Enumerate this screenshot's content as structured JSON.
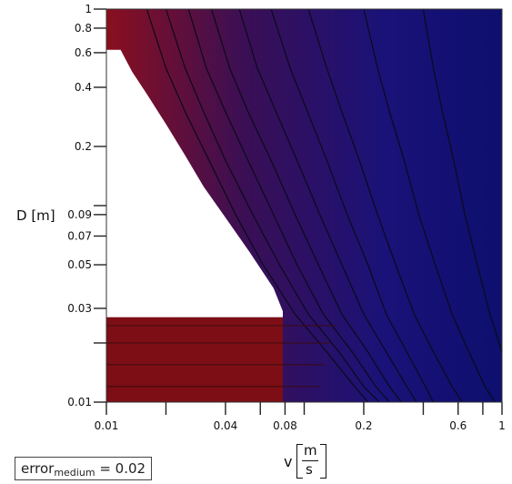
{
  "chart_data": {
    "type": "heatmap",
    "title": "",
    "xlabel": {
      "var": "v",
      "unit_num": "m",
      "unit_den": "s"
    },
    "ylabel": "D [m]",
    "x_scale": "log",
    "y_scale": "log",
    "xlim": [
      0.01,
      1
    ],
    "ylim": [
      0.01,
      1
    ],
    "x_ticks": [
      {
        "value": 0.01,
        "label": "0.01"
      },
      {
        "value": 0.02,
        "label": ""
      },
      {
        "value": 0.04,
        "label": "0.04"
      },
      {
        "value": 0.06,
        "label": ""
      },
      {
        "value": 0.08,
        "label": "0.08"
      },
      {
        "value": 0.1,
        "label": ""
      },
      {
        "value": 0.2,
        "label": "0.2"
      },
      {
        "value": 0.4,
        "label": ""
      },
      {
        "value": 0.6,
        "label": "0.6"
      },
      {
        "value": 0.8,
        "label": ""
      },
      {
        "value": 1,
        "label": "1"
      }
    ],
    "y_ticks": [
      {
        "value": 0.01,
        "label": "0.01"
      },
      {
        "value": 0.02,
        "label": ""
      },
      {
        "value": 0.03,
        "label": "0.03"
      },
      {
        "value": 0.05,
        "label": "0.05"
      },
      {
        "value": 0.07,
        "label": "0.07"
      },
      {
        "value": 0.09,
        "label": "0.09"
      },
      {
        "value": 0.1,
        "label": ""
      },
      {
        "value": 0.2,
        "label": "0.2"
      },
      {
        "value": 0.4,
        "label": "0.4"
      },
      {
        "value": 0.6,
        "label": "0.6"
      },
      {
        "value": 0.8,
        "label": "0.8"
      },
      {
        "value": 1,
        "label": "1"
      }
    ],
    "colormap": {
      "low": "#0d0f6e",
      "high": "#8a0f1e"
    },
    "blank_region": {
      "color": "#ffffff",
      "boundary": [
        {
          "v": 0.0118,
          "D": 0.62
        },
        {
          "v": 0.0135,
          "D": 0.48
        },
        {
          "v": 0.016,
          "D": 0.37
        },
        {
          "v": 0.02,
          "D": 0.26
        },
        {
          "v": 0.025,
          "D": 0.18
        },
        {
          "v": 0.031,
          "D": 0.125
        },
        {
          "v": 0.04,
          "D": 0.087
        },
        {
          "v": 0.053,
          "D": 0.058
        },
        {
          "v": 0.07,
          "D": 0.038
        },
        {
          "v": 0.078,
          "D": 0.029
        }
      ]
    },
    "low_D_band": {
      "D_max": 0.027,
      "color": "#7d0e15"
    },
    "contours": [
      {
        "pts": [
          {
            "v": 0.016,
            "D": 1
          },
          {
            "v": 0.02,
            "D": 0.5
          },
          {
            "v": 0.025,
            "D": 0.3
          },
          {
            "v": 0.033,
            "D": 0.17
          },
          {
            "v": 0.045,
            "D": 0.09
          },
          {
            "v": 0.062,
            "D": 0.05
          },
          {
            "v": 0.09,
            "D": 0.028
          },
          {
            "v": 0.13,
            "D": 0.018
          },
          {
            "v": 0.18,
            "D": 0.012
          },
          {
            "v": 0.21,
            "D": 0.01
          }
        ]
      },
      {
        "pts": [
          {
            "v": 0.02,
            "D": 1
          },
          {
            "v": 0.025,
            "D": 0.5
          },
          {
            "v": 0.031,
            "D": 0.3
          },
          {
            "v": 0.04,
            "D": 0.17
          },
          {
            "v": 0.055,
            "D": 0.09
          },
          {
            "v": 0.075,
            "D": 0.05
          },
          {
            "v": 0.105,
            "D": 0.028
          },
          {
            "v": 0.15,
            "D": 0.018
          },
          {
            "v": 0.2,
            "D": 0.012
          },
          {
            "v": 0.24,
            "D": 0.01
          }
        ]
      },
      {
        "pts": [
          {
            "v": 0.026,
            "D": 1
          },
          {
            "v": 0.032,
            "D": 0.5
          },
          {
            "v": 0.04,
            "D": 0.3
          },
          {
            "v": 0.052,
            "D": 0.17
          },
          {
            "v": 0.07,
            "D": 0.09
          },
          {
            "v": 0.092,
            "D": 0.05
          },
          {
            "v": 0.125,
            "D": 0.028
          },
          {
            "v": 0.175,
            "D": 0.018
          },
          {
            "v": 0.23,
            "D": 0.012
          },
          {
            "v": 0.27,
            "D": 0.01
          }
        ]
      },
      {
        "pts": [
          {
            "v": 0.034,
            "D": 1
          },
          {
            "v": 0.042,
            "D": 0.5
          },
          {
            "v": 0.052,
            "D": 0.3
          },
          {
            "v": 0.068,
            "D": 0.17
          },
          {
            "v": 0.09,
            "D": 0.09
          },
          {
            "v": 0.118,
            "D": 0.05
          },
          {
            "v": 0.155,
            "D": 0.028
          },
          {
            "v": 0.21,
            "D": 0.018
          },
          {
            "v": 0.27,
            "D": 0.012
          },
          {
            "v": 0.31,
            "D": 0.01
          }
        ]
      },
      {
        "pts": [
          {
            "v": 0.047,
            "D": 1
          },
          {
            "v": 0.058,
            "D": 0.5
          },
          {
            "v": 0.072,
            "D": 0.3
          },
          {
            "v": 0.092,
            "D": 0.17
          },
          {
            "v": 0.12,
            "D": 0.09
          },
          {
            "v": 0.155,
            "D": 0.05
          },
          {
            "v": 0.2,
            "D": 0.028
          },
          {
            "v": 0.26,
            "D": 0.018
          },
          {
            "v": 0.33,
            "D": 0.012
          },
          {
            "v": 0.37,
            "D": 0.01
          }
        ]
      },
      {
        "pts": [
          {
            "v": 0.068,
            "D": 1
          },
          {
            "v": 0.085,
            "D": 0.5
          },
          {
            "v": 0.104,
            "D": 0.3
          },
          {
            "v": 0.13,
            "D": 0.17
          },
          {
            "v": 0.165,
            "D": 0.09
          },
          {
            "v": 0.21,
            "D": 0.05
          },
          {
            "v": 0.26,
            "D": 0.028
          },
          {
            "v": 0.33,
            "D": 0.018
          },
          {
            "v": 0.41,
            "D": 0.012
          },
          {
            "v": 0.45,
            "D": 0.01
          }
        ]
      },
      {
        "pts": [
          {
            "v": 0.105,
            "D": 1
          },
          {
            "v": 0.13,
            "D": 0.5
          },
          {
            "v": 0.155,
            "D": 0.3
          },
          {
            "v": 0.19,
            "D": 0.17
          },
          {
            "v": 0.235,
            "D": 0.09
          },
          {
            "v": 0.29,
            "D": 0.05
          },
          {
            "v": 0.36,
            "D": 0.028
          },
          {
            "v": 0.45,
            "D": 0.018
          },
          {
            "v": 0.56,
            "D": 0.012
          },
          {
            "v": 0.63,
            "D": 0.01
          }
        ]
      },
      {
        "pts": [
          {
            "v": 0.2,
            "D": 1
          },
          {
            "v": 0.235,
            "D": 0.5
          },
          {
            "v": 0.27,
            "D": 0.3
          },
          {
            "v": 0.32,
            "D": 0.17
          },
          {
            "v": 0.38,
            "D": 0.09
          },
          {
            "v": 0.46,
            "D": 0.05
          },
          {
            "v": 0.56,
            "D": 0.028
          },
          {
            "v": 0.68,
            "D": 0.018
          },
          {
            "v": 0.82,
            "D": 0.012
          },
          {
            "v": 0.92,
            "D": 0.01
          }
        ]
      },
      {
        "pts": [
          {
            "v": 0.4,
            "D": 1
          },
          {
            "v": 0.45,
            "D": 0.5
          },
          {
            "v": 0.5,
            "D": 0.3
          },
          {
            "v": 0.57,
            "D": 0.17
          },
          {
            "v": 0.65,
            "D": 0.09
          },
          {
            "v": 0.75,
            "D": 0.05
          },
          {
            "v": 0.87,
            "D": 0.028
          },
          {
            "v": 1,
            "D": 0.018
          }
        ]
      }
    ],
    "band_lines": [
      0.012,
      0.0155,
      0.02,
      0.0245
    ],
    "annotation": {
      "label": "error",
      "subscript": "medium",
      "value": "= 0.02"
    }
  }
}
